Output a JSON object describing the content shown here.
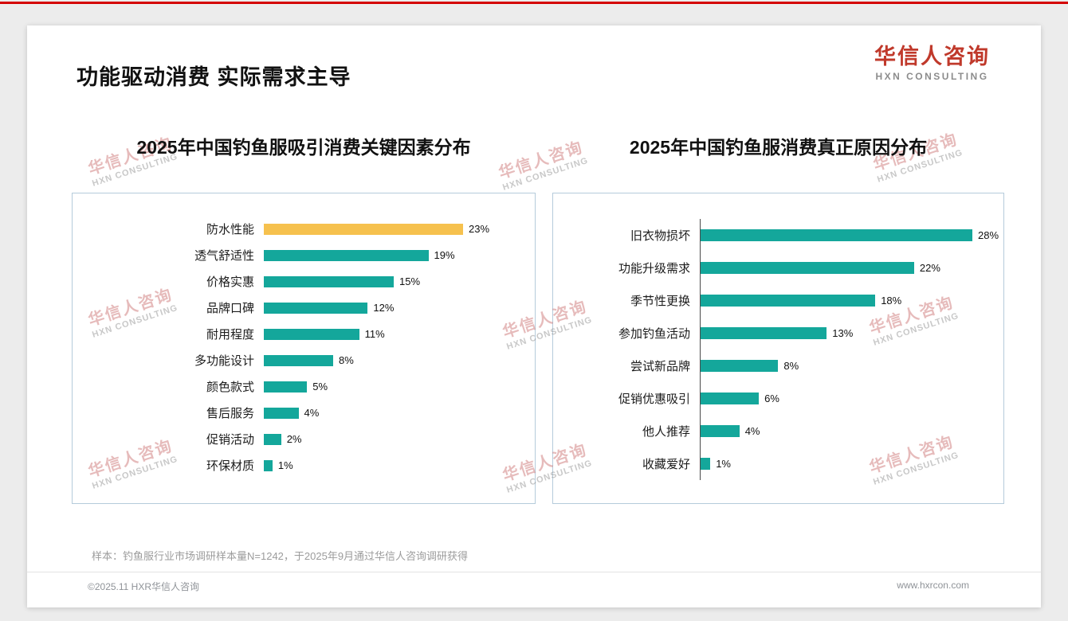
{
  "page": {
    "title": "功能驱动消费 实际需求主导",
    "logo": {
      "cn": "华信人咨询",
      "en": "HXN CONSULTING"
    },
    "watermark": {
      "cn": "华信人咨询",
      "en": "HXN CONSULTING"
    },
    "footnote": "样本：钓鱼服行业市场调研样本量N=1242，于2025年9月通过华信人咨询调研获得",
    "footer_left": "©2025.11 HXR华信人咨询",
    "footer_right": "www.hxrcon.com"
  },
  "colors": {
    "accent_red": "#d40000",
    "logo_red": "#c0392b",
    "bar_teal": "#14a79b",
    "bar_yellow": "#f6c14e",
    "panel_border": "#b5cbdb"
  },
  "chart_data": [
    {
      "type": "bar",
      "orientation": "horizontal",
      "title": "2025年中国钓鱼服吸引消费关键因素分布",
      "categories": [
        "防水性能",
        "透气舒适性",
        "价格实惠",
        "品牌口碑",
        "耐用程度",
        "多功能设计",
        "颜色款式",
        "售后服务",
        "促销活动",
        "环保材质"
      ],
      "values": [
        23,
        19,
        15,
        12,
        11,
        8,
        5,
        4,
        2,
        1
      ],
      "unit": "%",
      "bar_color": "#14a79b",
      "highlight_index": 0,
      "highlight_color": "#f6c14e",
      "grid": false,
      "legend": "none",
      "axis_line": false
    },
    {
      "type": "bar",
      "orientation": "horizontal",
      "title": "2025年中国钓鱼服消费真正原因分布",
      "categories": [
        "旧衣物损坏",
        "功能升级需求",
        "季节性更换",
        "参加钓鱼活动",
        "尝试新品牌",
        "促销优惠吸引",
        "他人推荐",
        "收藏爱好"
      ],
      "values": [
        28,
        22,
        18,
        13,
        8,
        6,
        4,
        1
      ],
      "unit": "%",
      "bar_color": "#14a79b",
      "highlight_index": -1,
      "grid": false,
      "legend": "none",
      "axis_line": true
    }
  ]
}
